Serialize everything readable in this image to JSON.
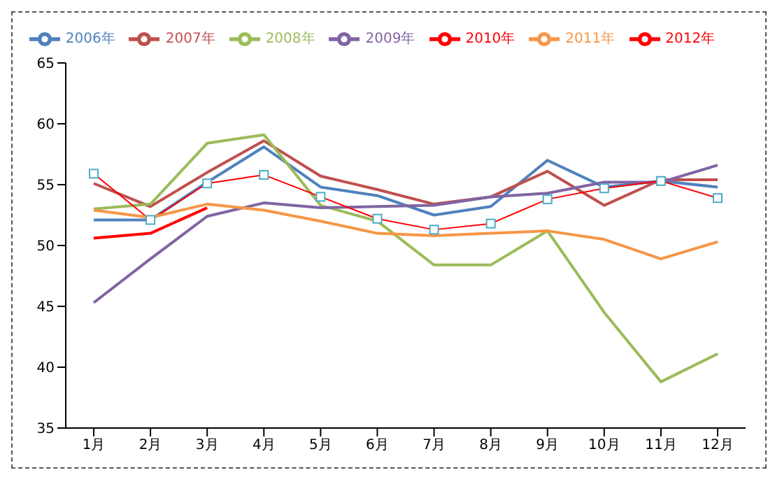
{
  "chart_data": {
    "type": "line",
    "categories": [
      "1月",
      "2月",
      "3月",
      "4月",
      "5月",
      "6月",
      "7月",
      "8月",
      "9月",
      "10月",
      "11月",
      "12月"
    ],
    "ylim": [
      35,
      65
    ],
    "yticks": [
      35,
      40,
      45,
      50,
      55,
      60,
      65
    ],
    "grid": false,
    "legend": "top",
    "marker": "none",
    "series": [
      {
        "name": "2006年",
        "color": "#4f81bd",
        "values": [
          52.1,
          52.1,
          55.2,
          58.1,
          54.8,
          54.1,
          52.5,
          53.2,
          57.0,
          54.8,
          55.3,
          54.8
        ]
      },
      {
        "name": "2007年",
        "color": "#c0504d",
        "values": [
          55.1,
          53.2,
          56.0,
          58.6,
          55.7,
          54.6,
          53.4,
          54.0,
          56.1,
          53.3,
          55.4,
          55.4
        ]
      },
      {
        "name": "2008年",
        "color": "#9bbb59",
        "values": [
          53.0,
          53.4,
          58.4,
          59.1,
          53.3,
          52.0,
          48.4,
          48.4,
          51.2,
          44.5,
          38.8,
          41.1
        ]
      },
      {
        "name": "2009年",
        "color": "#8064a2",
        "values": [
          45.3,
          48.9,
          52.4,
          53.5,
          53.1,
          53.2,
          53.3,
          54.0,
          54.3,
          55.2,
          55.2,
          56.6
        ]
      },
      {
        "name": "2010年",
        "color": "#ff0000",
        "marker": "square",
        "values": [
          55.9,
          52.1,
          55.1,
          55.8,
          54.0,
          52.2,
          51.3,
          51.8,
          53.8,
          54.7,
          55.3,
          53.9
        ]
      },
      {
        "name": "2011年",
        "color": "#f79646",
        "values": [
          52.9,
          52.3,
          53.4,
          52.9,
          52.0,
          51.0,
          50.8,
          51.0,
          51.2,
          50.5,
          48.9,
          50.3
        ]
      },
      {
        "name": "2012年",
        "color": "#ff0000",
        "values": [
          50.6,
          51.0,
          53.1,
          null,
          null,
          null,
          null,
          null,
          null,
          null,
          null,
          null
        ]
      }
    ]
  }
}
